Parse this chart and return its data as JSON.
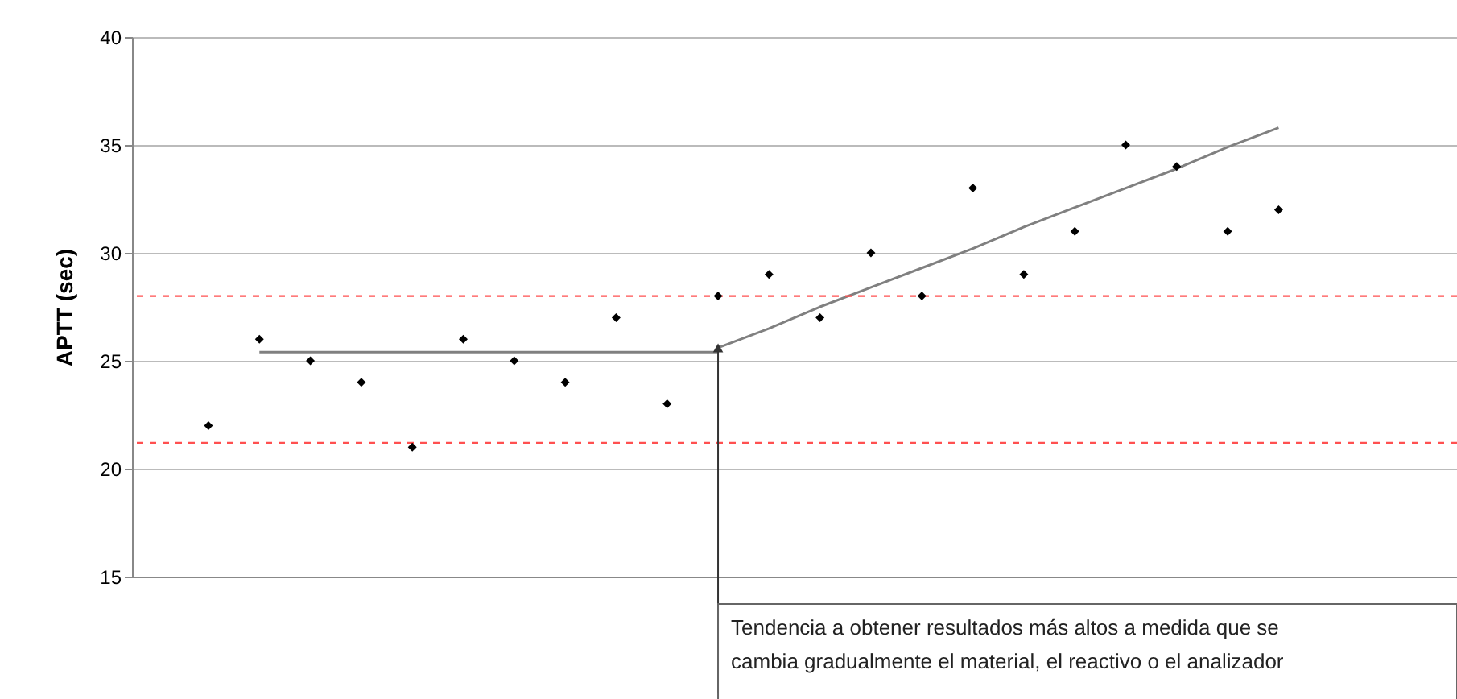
{
  "chart_data": {
    "type": "scatter",
    "ylabel": "APTT (sec)",
    "categories": [
      null,
      null,
      null,
      null,
      null,
      null,
      null,
      null,
      null,
      null,
      null,
      null,
      null,
      null,
      null,
      null,
      null,
      null,
      null,
      null,
      null,
      null,
      null,
      null,
      null,
      null
    ],
    "ylim": [
      15,
      40
    ],
    "yticks": [
      15,
      20,
      25,
      30,
      35,
      40
    ],
    "tick_labels": "y",
    "grid": "y",
    "marker": "diamond",
    "series": [
      {
        "color": "#000000",
        "values": [
          null,
          22,
          26,
          25,
          24,
          21,
          26,
          25,
          24,
          27,
          23,
          28,
          29,
          27,
          30,
          28,
          33,
          29,
          31,
          35,
          34,
          31,
          32,
          null,
          null,
          null
        ]
      },
      {
        "type": "line",
        "marker": "none",
        "color": "#808080",
        "values": [
          null,
          null,
          25.4,
          25.4,
          25.4,
          25.4,
          25.4,
          25.4,
          25.4,
          25.4,
          25.4,
          25.4,
          null,
          null,
          null,
          null,
          null,
          null,
          null,
          null,
          null,
          null,
          null,
          null,
          null,
          null
        ]
      },
      {
        "type": "line",
        "marker": "none",
        "color": "#808080",
        "values": [
          null,
          null,
          null,
          null,
          null,
          null,
          null,
          null,
          null,
          null,
          null,
          25.6,
          26.5,
          27.5,
          28.4,
          29.3,
          30.2,
          31.2,
          32.1,
          33.0,
          33.9,
          34.9,
          35.8,
          null,
          null,
          null
        ]
      }
    ],
    "ref_lines": [
      {
        "axis": "y",
        "value": 28,
        "color": "#ff5050",
        "line_style": "dashed"
      },
      {
        "axis": "y",
        "value": 21.2,
        "color": "#ff5050",
        "line_style": "dashed"
      }
    ],
    "annotations": [
      "Tendencia a obtener resultados más altos a medida que se cambia gradualmente el material, el reactivo o el analizador"
    ]
  }
}
